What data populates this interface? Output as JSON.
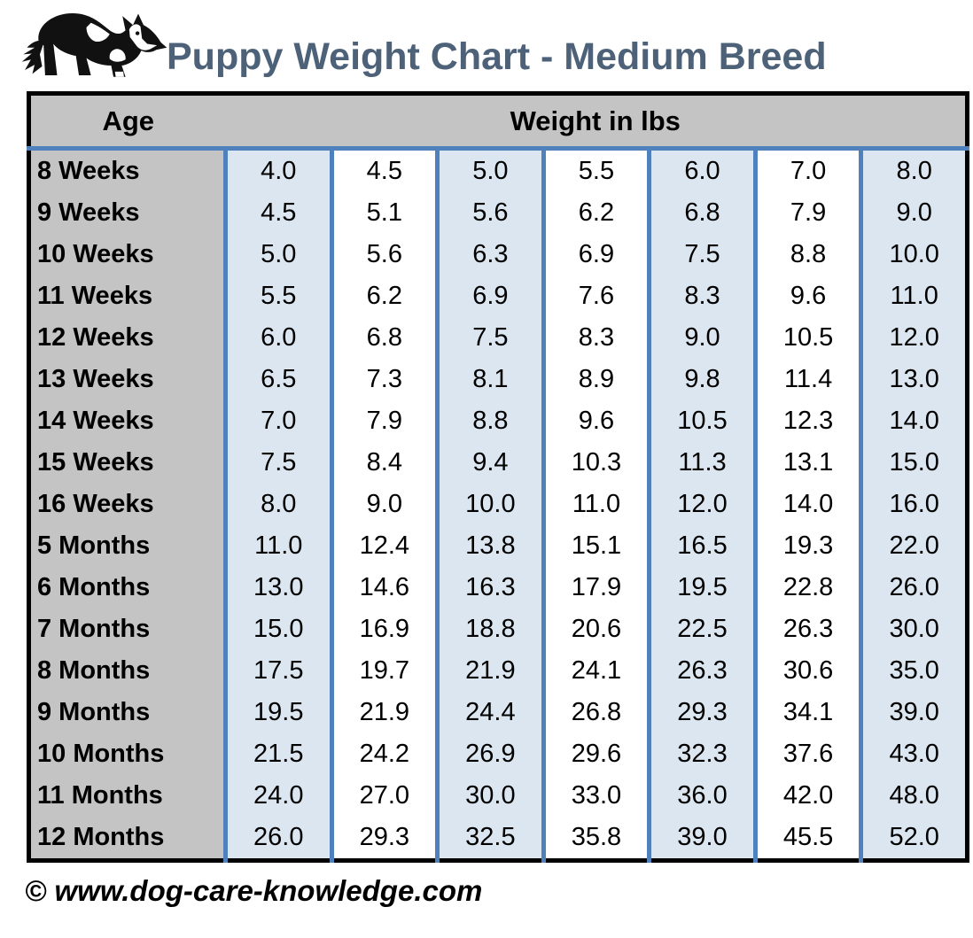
{
  "header": {
    "logo_icon": "border-collie-dog-icon",
    "title": "Puppy Weight Chart - Medium Breed"
  },
  "table": {
    "age_header": "Age",
    "weight_header": "Weight in lbs"
  },
  "chart_data": {
    "type": "table",
    "title": "Puppy Weight Chart - Medium Breed",
    "row_header_label": "Age",
    "value_group_label": "Weight in lbs",
    "unit": "lbs",
    "ages": [
      "8 Weeks",
      "9 Weeks",
      "10 Weeks",
      "11 Weeks",
      "12 Weeks",
      "13 Weeks",
      "14 Weeks",
      "15 Weeks",
      "16 Weeks",
      "5 Months",
      "6 Months",
      "7 Months",
      "8 Months",
      "9 Months",
      "10 Months",
      "11 Months",
      "12 Months"
    ],
    "values": [
      [
        "4.0",
        "4.5",
        "5.0",
        "5.5",
        "6.0",
        "7.0",
        "8.0"
      ],
      [
        "4.5",
        "5.1",
        "5.6",
        "6.2",
        "6.8",
        "7.9",
        "9.0"
      ],
      [
        "5.0",
        "5.6",
        "6.3",
        "6.9",
        "7.5",
        "8.8",
        "10.0"
      ],
      [
        "5.5",
        "6.2",
        "6.9",
        "7.6",
        "8.3",
        "9.6",
        "11.0"
      ],
      [
        "6.0",
        "6.8",
        "7.5",
        "8.3",
        "9.0",
        "10.5",
        "12.0"
      ],
      [
        "6.5",
        "7.3",
        "8.1",
        "8.9",
        "9.8",
        "11.4",
        "13.0"
      ],
      [
        "7.0",
        "7.9",
        "8.8",
        "9.6",
        "10.5",
        "12.3",
        "14.0"
      ],
      [
        "7.5",
        "8.4",
        "9.4",
        "10.3",
        "11.3",
        "13.1",
        "15.0"
      ],
      [
        "8.0",
        "9.0",
        "10.0",
        "11.0",
        "12.0",
        "14.0",
        "16.0"
      ],
      [
        "11.0",
        "12.4",
        "13.8",
        "15.1",
        "16.5",
        "19.3",
        "22.0"
      ],
      [
        "13.0",
        "14.6",
        "16.3",
        "17.9",
        "19.5",
        "22.8",
        "26.0"
      ],
      [
        "15.0",
        "16.9",
        "18.8",
        "20.6",
        "22.5",
        "26.3",
        "30.0"
      ],
      [
        "17.5",
        "19.7",
        "21.9",
        "24.1",
        "26.3",
        "30.6",
        "35.0"
      ],
      [
        "19.5",
        "21.9",
        "24.4",
        "26.8",
        "29.3",
        "34.1",
        "39.0"
      ],
      [
        "21.5",
        "24.2",
        "26.9",
        "29.6",
        "32.3",
        "37.6",
        "43.0"
      ],
      [
        "24.0",
        "27.0",
        "30.0",
        "33.0",
        "36.0",
        "42.0",
        "48.0"
      ],
      [
        "26.0",
        "29.3",
        "32.5",
        "35.8",
        "39.0",
        "45.5",
        "52.0"
      ]
    ]
  },
  "footer": {
    "copyright": "© www.dog-care-knowledge.com"
  },
  "colors": {
    "accent_blue": "#4F81BD",
    "band_blue": "#DCE6F1",
    "header_gray": "#C4C4C4",
    "title_slate": "#4D6278",
    "border_black": "#000000"
  }
}
